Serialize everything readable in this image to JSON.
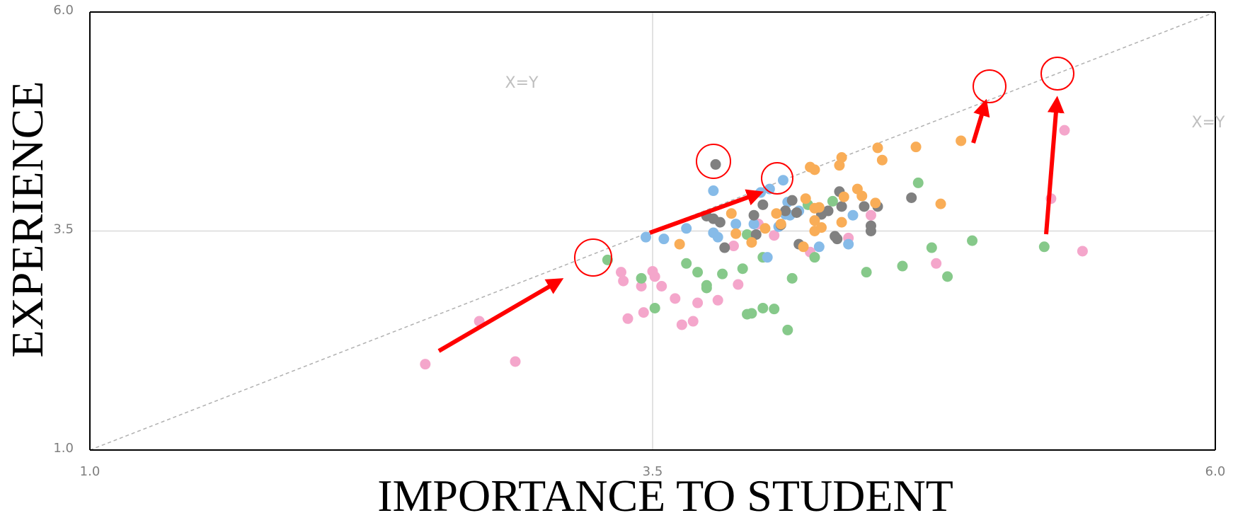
{
  "chart_data": {
    "type": "scatter",
    "x_label": "IMPORTANCE TO STUDENT",
    "y_label": "EXPERIENCE",
    "annotations": [
      "X=Y",
      "X=Y"
    ],
    "xlim": [
      1,
      6
    ],
    "ylim": [
      1,
      6
    ],
    "xticks": [
      {
        "value": 1,
        "label": "1.0"
      },
      3.5,
      {
        "value": 6,
        "label": "6.0"
      }
    ],
    "yticks": [
      {
        "value": 1,
        "label": "1.0"
      },
      3.5,
      {
        "value": 6,
        "label": "6.0"
      }
    ],
    "grid": true,
    "series": [
      {
        "color": "#f4a6cb",
        "x": [
          2.49,
          2.73,
          2.89,
          3.36,
          3.37,
          3.39,
          3.45,
          3.46,
          3.5,
          3.51,
          3.54,
          3.6,
          3.63,
          3.68,
          3.7,
          3.79,
          3.86,
          3.88,
          3.97,
          4.04,
          4.2,
          4.37,
          4.47,
          4.76,
          5.27,
          5.33,
          5.41
        ],
        "values": [
          1.98,
          2.47,
          2.01,
          3.03,
          2.93,
          2.5,
          2.87,
          2.57,
          3.04,
          2.98,
          2.87,
          2.73,
          2.43,
          2.47,
          2.68,
          2.71,
          3.33,
          2.89,
          3.58,
          3.45,
          3.26,
          3.42,
          3.68,
          3.13,
          3.87,
          4.65,
          3.27
        ]
      },
      {
        "color": "#86c98a",
        "x": [
          3.3,
          3.45,
          3.51,
          3.65,
          3.7,
          3.74,
          3.74,
          3.81,
          3.9,
          3.92,
          3.94,
          3.92,
          3.99,
          3.99,
          4.04,
          4.1,
          4.12,
          4.19,
          4.22,
          4.3,
          4.45,
          4.61,
          4.68,
          4.74,
          4.81,
          4.92,
          5.24
        ],
        "values": [
          3.17,
          2.96,
          2.62,
          3.13,
          3.03,
          2.88,
          2.85,
          3.01,
          3.07,
          2.55,
          2.56,
          3.46,
          2.62,
          3.2,
          2.61,
          2.37,
          2.96,
          3.8,
          3.2,
          3.84,
          3.03,
          3.1,
          4.05,
          3.31,
          2.98,
          3.39,
          3.32
        ]
      },
      {
        "color": "#86bbe8",
        "x": [
          3.47,
          3.55,
          3.65,
          3.77,
          3.77,
          3.79,
          3.87,
          3.95,
          3.98,
          4.01,
          4.02,
          4.06,
          4.08,
          4.1,
          4.09,
          4.11,
          4.15,
          4.24,
          4.37,
          4.39
        ],
        "values": [
          3.43,
          3.41,
          3.53,
          3.96,
          3.48,
          3.43,
          3.58,
          3.58,
          3.94,
          3.2,
          3.98,
          3.55,
          4.08,
          3.83,
          3.69,
          3.68,
          3.73,
          3.32,
          3.35,
          3.68
        ]
      },
      {
        "color": "#808080",
        "x": [
          3.78,
          3.74,
          3.77,
          3.8,
          3.82,
          3.95,
          3.96,
          3.99,
          4.07,
          4.09,
          4.12,
          4.14,
          4.15,
          4.25,
          4.28,
          4.31,
          4.32,
          4.34,
          4.33,
          4.44,
          4.47,
          4.47,
          4.5,
          4.65
        ],
        "values": [
          4.26,
          3.67,
          3.64,
          3.6,
          3.31,
          3.68,
          3.46,
          3.8,
          3.57,
          3.73,
          3.85,
          3.71,
          3.35,
          3.69,
          3.73,
          3.44,
          3.41,
          3.78,
          3.95,
          3.78,
          3.56,
          3.5,
          3.78,
          3.88
        ]
      },
      {
        "color": "#f9ad57",
        "x": [
          3.62,
          3.85,
          3.87,
          3.94,
          4.0,
          4.05,
          4.07,
          4.17,
          4.18,
          4.22,
          4.22,
          4.22,
          4.2,
          4.22,
          4.24,
          4.25,
          4.33,
          4.34,
          4.35,
          4.34,
          4.41,
          4.43,
          4.49,
          4.5,
          4.52,
          4.67,
          4.78,
          4.87
        ],
        "values": [
          3.35,
          3.7,
          3.47,
          3.37,
          3.53,
          3.7,
          3.58,
          3.32,
          3.87,
          3.76,
          3.62,
          3.5,
          4.23,
          4.2,
          3.77,
          3.54,
          4.25,
          4.34,
          3.89,
          3.6,
          3.98,
          3.9,
          3.82,
          4.45,
          4.31,
          4.46,
          3.81,
          4.53
        ]
      }
    ]
  }
}
